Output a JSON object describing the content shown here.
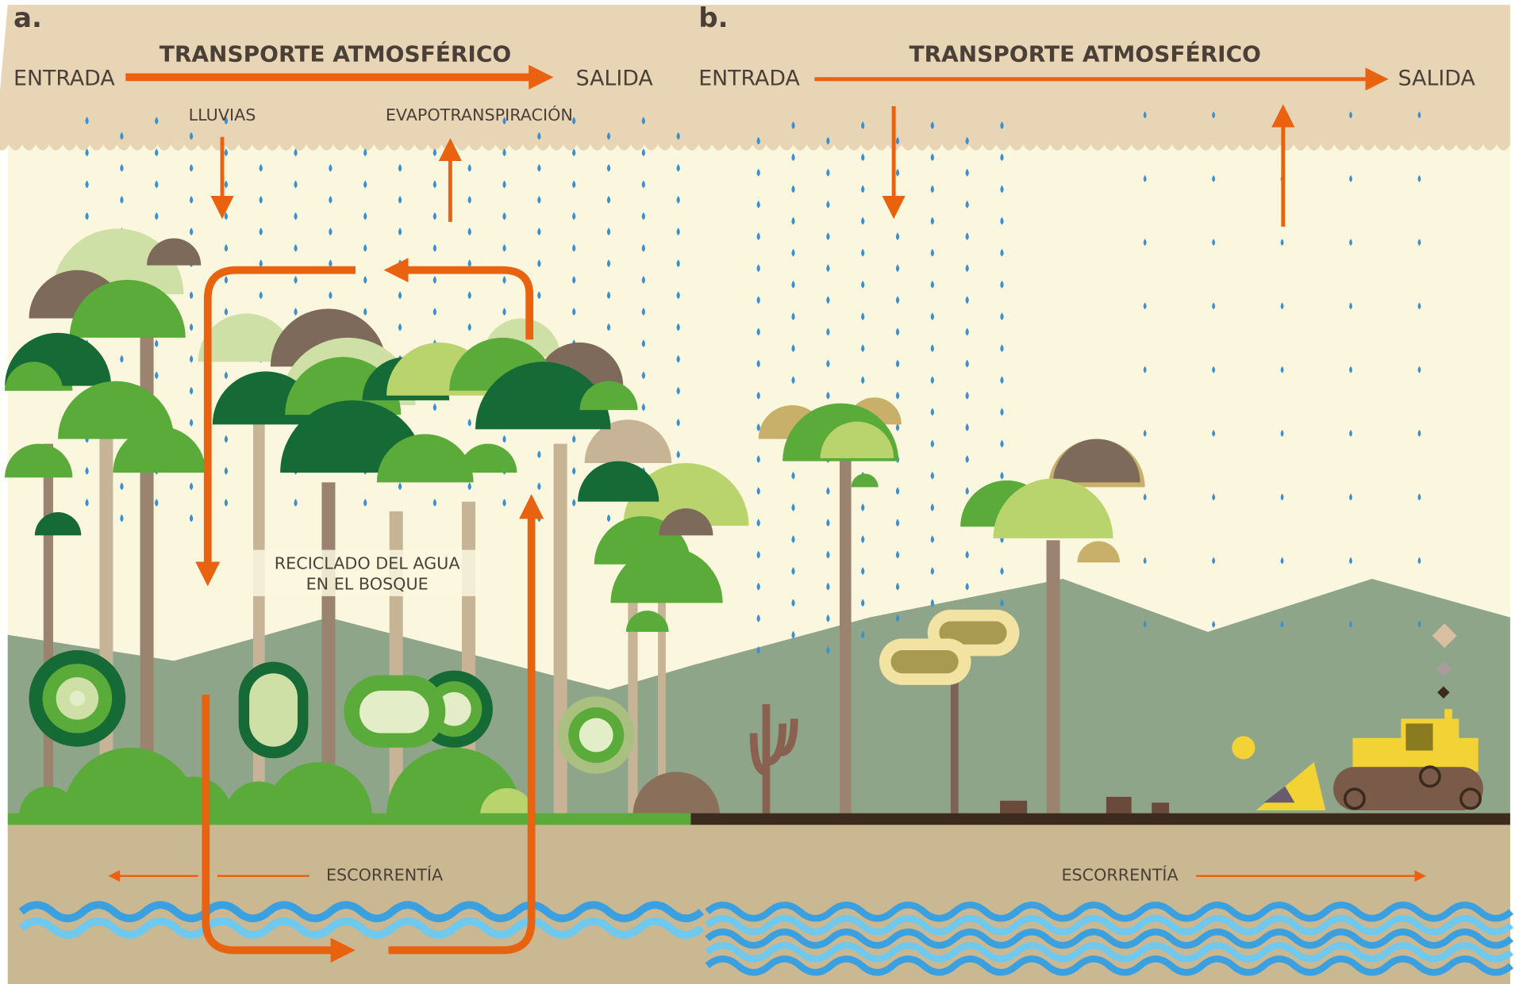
{
  "panels": [
    {
      "label": "a.",
      "transport": "TRANSPORTE ATMOSFÉRICO",
      "input": "ENTRADA",
      "output": "SALIDA",
      "rain": "LLUVIAS",
      "evapotranspiration": "EVAPOTRANSPIRACIÓN",
      "recycling": [
        "RECICLADO DEL AGUA",
        "EN EL BOSQUE"
      ],
      "runoff": "ESCORRENTÍA"
    },
    {
      "label": "b.",
      "transport": "TRANSPORTE ATMOSFÉRICO",
      "input": "ENTRADA",
      "output": "SALIDA",
      "runoff": "ESCORRENTÍA"
    }
  ]
}
